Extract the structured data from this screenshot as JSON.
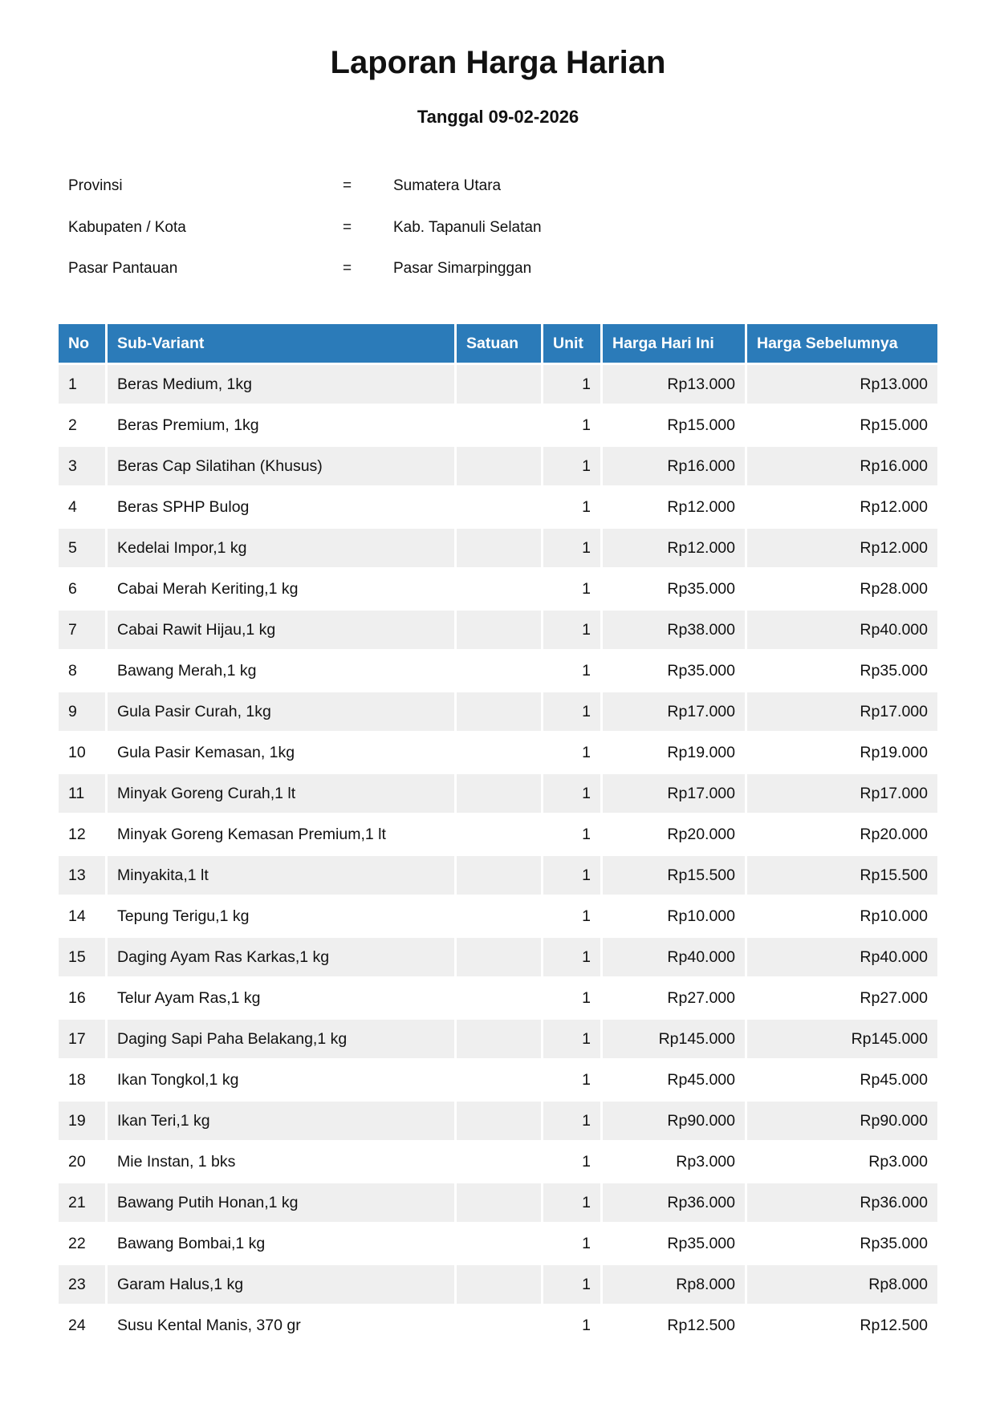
{
  "title": "Laporan Harga Harian",
  "subtitle": "Tanggal 09-02-2026",
  "info": [
    {
      "label": "Provinsi",
      "sep": "=",
      "value": "Sumatera Utara"
    },
    {
      "label": "Kabupaten / Kota",
      "sep": "=",
      "value": "Kab. Tapanuli Selatan"
    },
    {
      "label": "Pasar Pantauan",
      "sep": "=",
      "value": "Pasar Simarpinggan"
    }
  ],
  "colors": {
    "header": "#2b7bb9",
    "stripe": "#efefef"
  },
  "table": {
    "headers": [
      "No",
      "Sub-Variant",
      "Satuan",
      "Unit",
      "Harga Hari Ini",
      "Harga Sebelumnya"
    ],
    "rows": [
      [
        "1",
        "Beras Medium, 1kg",
        "",
        "1",
        "Rp13.000",
        "Rp13.000"
      ],
      [
        "2",
        "Beras Premium, 1kg",
        "",
        "1",
        "Rp15.000",
        "Rp15.000"
      ],
      [
        "3",
        "Beras Cap Silatihan (Khusus)",
        "",
        "1",
        "Rp16.000",
        "Rp16.000"
      ],
      [
        "4",
        "Beras SPHP Bulog",
        "",
        "1",
        "Rp12.000",
        "Rp12.000"
      ],
      [
        "5",
        "Kedelai Impor,1 kg",
        "",
        "1",
        "Rp12.000",
        "Rp12.000"
      ],
      [
        "6",
        "Cabai Merah Keriting,1 kg",
        "",
        "1",
        "Rp35.000",
        "Rp28.000"
      ],
      [
        "7",
        "Cabai Rawit Hijau,1 kg",
        "",
        "1",
        "Rp38.000",
        "Rp40.000"
      ],
      [
        "8",
        "Bawang Merah,1 kg",
        "",
        "1",
        "Rp35.000",
        "Rp35.000"
      ],
      [
        "9",
        "Gula Pasir Curah, 1kg",
        "",
        "1",
        "Rp17.000",
        "Rp17.000"
      ],
      [
        "10",
        "Gula Pasir Kemasan, 1kg",
        "",
        "1",
        "Rp19.000",
        "Rp19.000"
      ],
      [
        "11",
        "Minyak Goreng Curah,1 lt",
        "",
        "1",
        "Rp17.000",
        "Rp17.000"
      ],
      [
        "12",
        "Minyak Goreng Kemasan Premium,1 lt",
        "",
        "1",
        "Rp20.000",
        "Rp20.000"
      ],
      [
        "13",
        "Minyakita,1 lt",
        "",
        "1",
        "Rp15.500",
        "Rp15.500"
      ],
      [
        "14",
        "Tepung Terigu,1 kg",
        "",
        "1",
        "Rp10.000",
        "Rp10.000"
      ],
      [
        "15",
        "Daging Ayam Ras Karkas,1 kg",
        "",
        "1",
        "Rp40.000",
        "Rp40.000"
      ],
      [
        "16",
        "Telur Ayam Ras,1 kg",
        "",
        "1",
        "Rp27.000",
        "Rp27.000"
      ],
      [
        "17",
        "Daging Sapi Paha Belakang,1 kg",
        "",
        "1",
        "Rp145.000",
        "Rp145.000"
      ],
      [
        "18",
        "Ikan Tongkol,1 kg",
        "",
        "1",
        "Rp45.000",
        "Rp45.000"
      ],
      [
        "19",
        "Ikan Teri,1 kg",
        "",
        "1",
        "Rp90.000",
        "Rp90.000"
      ],
      [
        "20",
        "Mie Instan, 1 bks",
        "",
        "1",
        "Rp3.000",
        "Rp3.000"
      ],
      [
        "21",
        "Bawang Putih Honan,1 kg",
        "",
        "1",
        "Rp36.000",
        "Rp36.000"
      ],
      [
        "22",
        "Bawang Bombai,1 kg",
        "",
        "1",
        "Rp35.000",
        "Rp35.000"
      ],
      [
        "23",
        "Garam Halus,1 kg",
        "",
        "1",
        "Rp8.000",
        "Rp8.000"
      ],
      [
        "24",
        "Susu Kental Manis, 370 gr",
        "",
        "1",
        "Rp12.500",
        "Rp12.500"
      ]
    ]
  }
}
